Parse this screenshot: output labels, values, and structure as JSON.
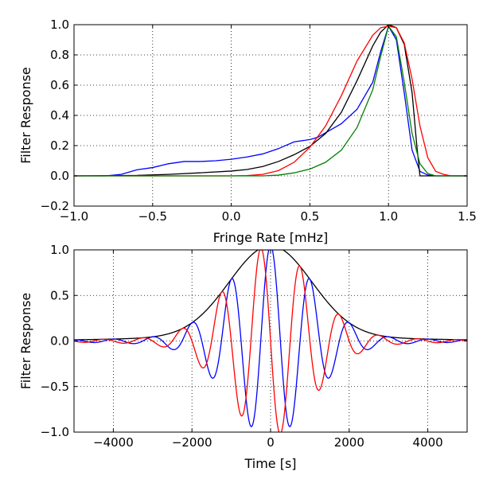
{
  "chart_data": [
    {
      "type": "line",
      "xlabel": "Fringe Rate [mHz]",
      "ylabel": "Filter Response",
      "xlim": [
        -1.0,
        1.5
      ],
      "ylim": [
        -0.2,
        1.0
      ],
      "xticks": [
        "−1.0",
        "−0.5",
        "0.0",
        "0.5",
        "1.0",
        "1.5"
      ],
      "xtick_values": [
        -1.0,
        -0.5,
        0.0,
        0.5,
        1.0,
        1.5
      ],
      "yticks": [
        "−0.2",
        "0.0",
        "0.2",
        "0.4",
        "0.6",
        "0.8",
        "1.0"
      ],
      "ytick_values": [
        -0.2,
        0.0,
        0.2,
        0.4,
        0.6,
        0.8,
        1.0
      ],
      "grid": true,
      "series": [
        {
          "color": "#0000ff",
          "x": [
            -1.0,
            -0.8,
            -0.7,
            -0.6,
            -0.5,
            -0.4,
            -0.3,
            -0.2,
            -0.1,
            0.0,
            0.1,
            0.2,
            0.3,
            0.4,
            0.5,
            0.55,
            0.6,
            0.7,
            0.8,
            0.9,
            0.95,
            1.0,
            1.05,
            1.1,
            1.15,
            1.2,
            1.25,
            1.3,
            1.4,
            1.5
          ],
          "y": [
            0.0,
            0.0,
            0.01,
            0.04,
            0.055,
            0.08,
            0.095,
            0.095,
            0.1,
            0.11,
            0.125,
            0.145,
            0.18,
            0.225,
            0.24,
            0.255,
            0.285,
            0.345,
            0.44,
            0.62,
            0.82,
            0.99,
            0.9,
            0.55,
            0.17,
            0.03,
            0.005,
            0.0,
            0.0,
            0.0
          ]
        },
        {
          "color": "#000000",
          "x": [
            -1.0,
            -0.6,
            -0.4,
            -0.2,
            0.0,
            0.1,
            0.2,
            0.3,
            0.4,
            0.5,
            0.6,
            0.7,
            0.8,
            0.9,
            0.95,
            1.0,
            1.05,
            1.1,
            1.15,
            1.18,
            1.2,
            1.3,
            1.5
          ],
          "y": [
            0.0,
            0.003,
            0.01,
            0.02,
            0.032,
            0.042,
            0.062,
            0.095,
            0.14,
            0.195,
            0.28,
            0.42,
            0.63,
            0.86,
            0.95,
            1.0,
            0.98,
            0.87,
            0.55,
            0.2,
            0.0,
            0.0,
            0.0
          ]
        },
        {
          "color": "#ff0000",
          "x": [
            -1.0,
            0.0,
            0.1,
            0.2,
            0.3,
            0.4,
            0.5,
            0.6,
            0.7,
            0.8,
            0.9,
            0.95,
            1.0,
            1.05,
            1.1,
            1.15,
            1.2,
            1.25,
            1.3,
            1.35,
            1.4,
            1.5
          ],
          "y": [
            0.0,
            0.0,
            0.002,
            0.01,
            0.035,
            0.09,
            0.19,
            0.33,
            0.53,
            0.76,
            0.93,
            0.98,
            0.99,
            0.98,
            0.88,
            0.64,
            0.33,
            0.12,
            0.03,
            0.01,
            0.0,
            0.0
          ]
        },
        {
          "color": "#008000",
          "x": [
            -1.0,
            0.2,
            0.3,
            0.4,
            0.5,
            0.6,
            0.7,
            0.8,
            0.9,
            0.95,
            1.0,
            1.05,
            1.1,
            1.15,
            1.2,
            1.25,
            1.3,
            1.4,
            1.5
          ],
          "y": [
            0.0,
            0.0,
            0.005,
            0.02,
            0.045,
            0.09,
            0.17,
            0.32,
            0.57,
            0.79,
            0.99,
            0.92,
            0.62,
            0.28,
            0.08,
            0.015,
            0.0,
            0.0,
            0.0
          ]
        }
      ]
    },
    {
      "type": "line",
      "xlabel": "Time [s]",
      "ylabel": "Filter Response",
      "xlim": [
        -5000,
        5000
      ],
      "ylim": [
        -1.0,
        1.0
      ],
      "xticks": [
        "−4000",
        "−2000",
        "0",
        "2000",
        "4000"
      ],
      "xtick_values": [
        -4000,
        -2000,
        0,
        2000,
        4000
      ],
      "yticks": [
        "−1.0",
        "−0.5",
        "0.0",
        "0.5",
        "1.0"
      ],
      "ytick_values": [
        -1.0,
        -0.5,
        0.0,
        0.5,
        1.0
      ],
      "grid": true,
      "series": [
        {
          "color": "#000000",
          "envelope": {
            "peak": 1.0,
            "center": 0,
            "width": 1050,
            "floor_scale": 0.045,
            "floor_width": 3200
          }
        },
        {
          "color": "#0000ff",
          "carrier": {
            "amplitude": 1.0,
            "center": 0,
            "width": 1050,
            "frequency_mhz": 1.0,
            "phase_deg": 0,
            "floor_scale": 0.045,
            "floor_width": 3200
          }
        },
        {
          "color": "#ff0000",
          "carrier": {
            "amplitude": 1.0,
            "center": 0,
            "width": 1050,
            "frequency_mhz": 1.0,
            "phase_deg": 90,
            "floor_scale": 0.045,
            "floor_width": 3200
          }
        }
      ]
    }
  ]
}
